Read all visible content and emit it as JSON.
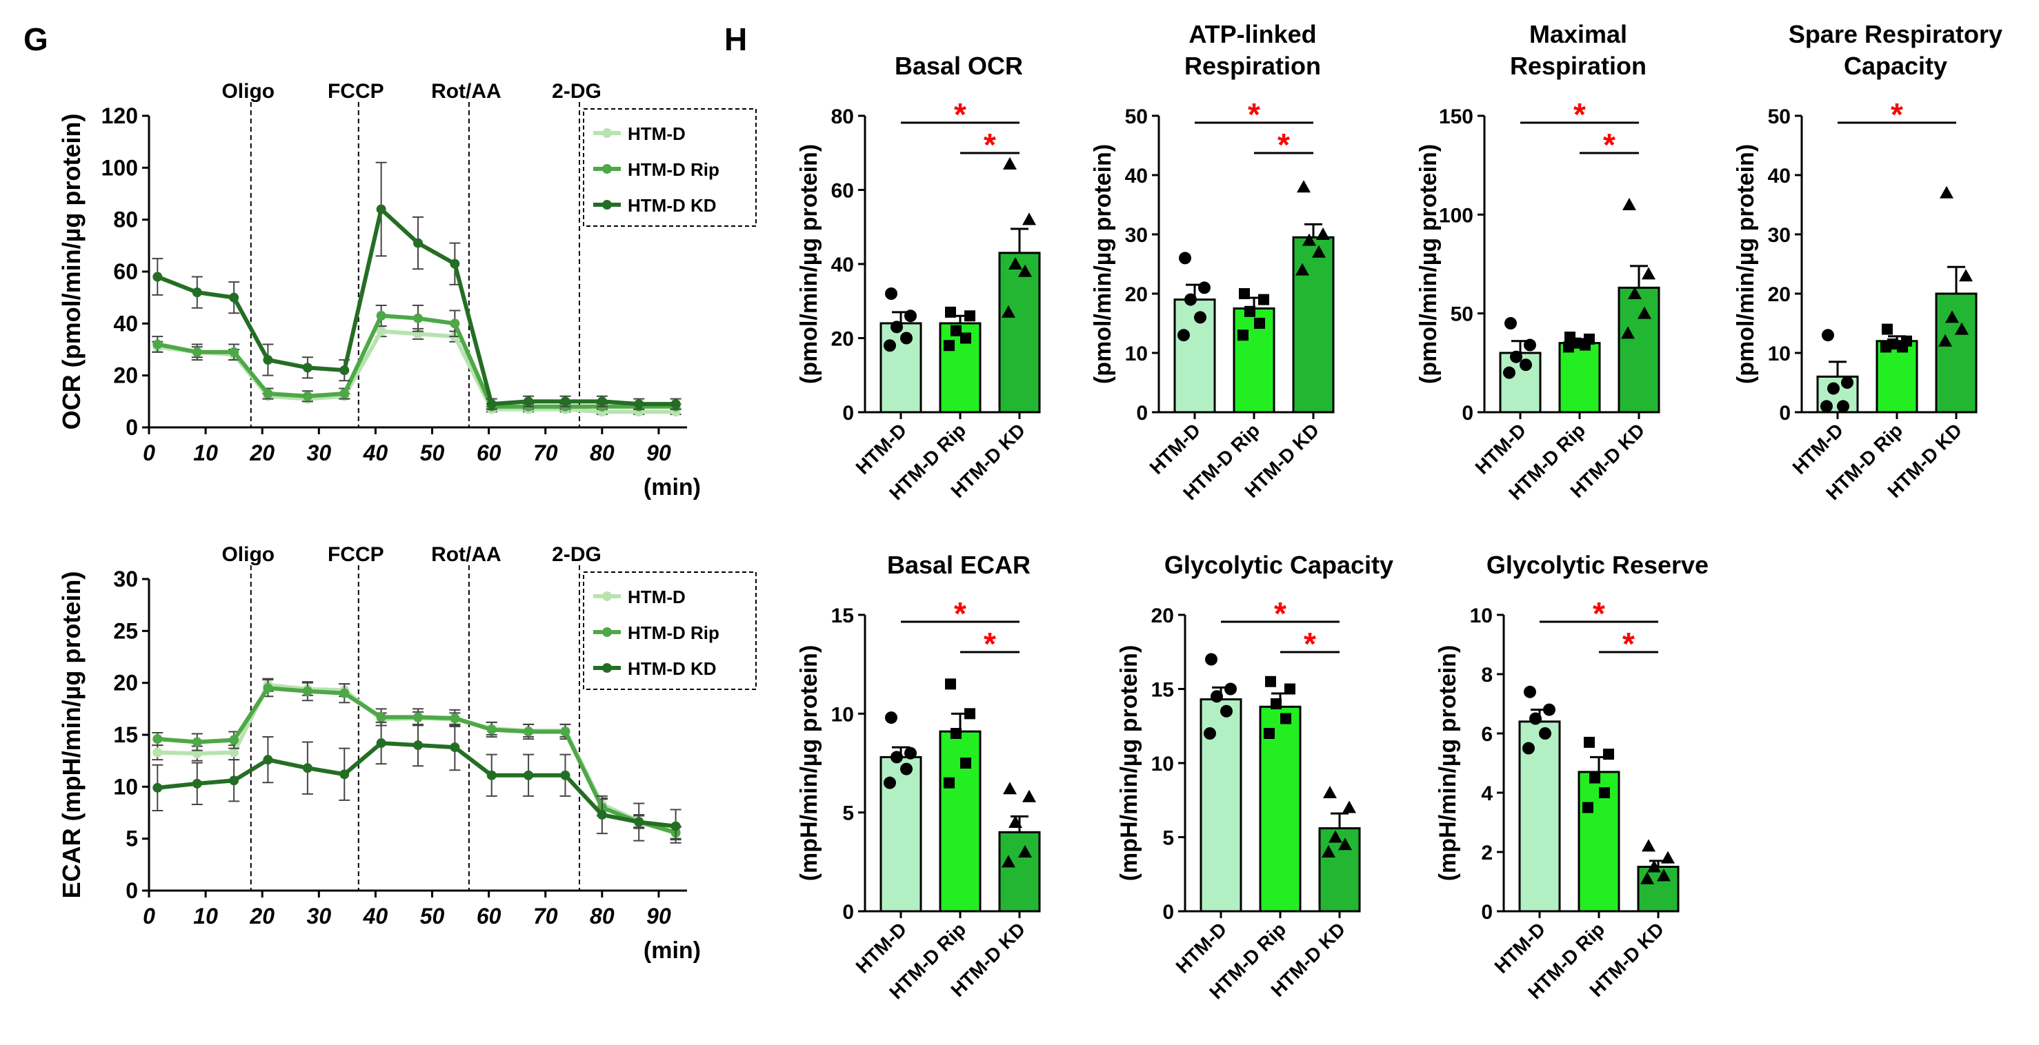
{
  "panels": {
    "g_letter": "G",
    "h_letter": "H"
  },
  "colors": {
    "htm_d": "#b2f0c4",
    "htm_d_rip": "#22ee22",
    "htm_d_kd": "#22b633",
    "line_d": "#b8e3b0",
    "line_rip": "#4ea847",
    "line_kd": "#246e24",
    "sig": "#ff0000"
  },
  "chart_data": [
    {
      "id": "ocr_line",
      "type": "line",
      "title": "",
      "xlabel": "(min)",
      "ylabel": "OCR (pmol/min/µg protein)",
      "xlim": [
        0,
        95
      ],
      "ylim": [
        0,
        120
      ],
      "xticks": [
        0,
        10,
        20,
        30,
        40,
        50,
        60,
        70,
        80,
        90
      ],
      "yticks": [
        0,
        20,
        40,
        60,
        80,
        100,
        120
      ],
      "x": [
        1.5,
        8.5,
        15,
        21,
        28,
        34.5,
        41,
        47.5,
        54,
        60.5,
        67,
        73.5,
        80,
        86.5,
        93
      ],
      "injections": [
        {
          "x": 18,
          "label": "Oligo"
        },
        {
          "x": 37,
          "label": "FCCP"
        },
        {
          "x": 56.5,
          "label": "Rot/AA"
        },
        {
          "x": 76,
          "label": "2-DG"
        }
      ],
      "legend": [
        "HTM-D",
        "HTM-D Rip",
        "HTM-D KD"
      ],
      "series": [
        {
          "name": "HTM-D",
          "values": [
            31,
            29,
            28,
            12,
            11,
            12,
            37,
            36,
            35,
            7,
            7,
            7,
            6,
            6,
            6
          ],
          "err": [
            2,
            2,
            2,
            1,
            1,
            1,
            2,
            2,
            2,
            1,
            1,
            1,
            1,
            1,
            1
          ]
        },
        {
          "name": "HTM-D Rip",
          "values": [
            32,
            29,
            29,
            13,
            12,
            13,
            43,
            42,
            40,
            8,
            8,
            8,
            8,
            8,
            8
          ],
          "err": [
            3,
            3,
            3,
            2,
            2,
            2,
            4,
            5,
            5,
            1,
            1,
            1,
            1,
            1,
            1
          ]
        },
        {
          "name": "HTM-D KD",
          "values": [
            58,
            52,
            50,
            26,
            23,
            22,
            84,
            71,
            63,
            9,
            10,
            10,
            10,
            9,
            9
          ],
          "err": [
            7,
            6,
            6,
            6,
            4,
            4,
            18,
            10,
            8,
            2,
            2,
            2,
            2,
            2,
            2
          ]
        }
      ]
    },
    {
      "id": "ecar_line",
      "type": "line",
      "title": "",
      "xlabel": "(min)",
      "ylabel": "ECAR (mpH/min/µg protein)",
      "xlim": [
        0,
        95
      ],
      "ylim": [
        0,
        30
      ],
      "xticks": [
        0,
        10,
        20,
        30,
        40,
        50,
        60,
        70,
        80,
        90
      ],
      "yticks": [
        0,
        5,
        10,
        15,
        20,
        25,
        30
      ],
      "x": [
        1.5,
        8.5,
        15,
        21,
        28,
        34.5,
        41,
        47.5,
        54,
        60.5,
        67,
        73.5,
        80,
        86.5,
        93
      ],
      "injections": [
        {
          "x": 18,
          "label": "Oligo"
        },
        {
          "x": 37,
          "label": "FCCP"
        },
        {
          "x": 56.5,
          "label": "Rot/AA"
        },
        {
          "x": 76,
          "label": "2-DG"
        }
      ],
      "legend": [
        "HTM-D",
        "HTM-D Rip",
        "HTM-D KD"
      ],
      "series": [
        {
          "name": "HTM-D",
          "values": [
            13.3,
            13.2,
            13.3,
            19.8,
            19.4,
            19.3,
            16.5,
            16.6,
            16.5,
            15.6,
            15.4,
            15.4,
            8.3,
            6.7,
            5.5
          ],
          "err": [
            0.7,
            0.7,
            0.7,
            0.6,
            0.6,
            0.6,
            0.6,
            0.6,
            0.6,
            0.6,
            0.6,
            0.6,
            0.6,
            0.6,
            0.6
          ]
        },
        {
          "name": "HTM-D Rip",
          "values": [
            14.6,
            14.3,
            14.5,
            19.5,
            19.2,
            19.0,
            16.7,
            16.7,
            16.6,
            15.5,
            15.3,
            15.3,
            8.0,
            6.6,
            5.6
          ],
          "err": [
            0.6,
            0.8,
            0.8,
            0.8,
            0.9,
            0.9,
            0.8,
            0.8,
            0.8,
            0.7,
            0.7,
            0.7,
            0.8,
            0.6,
            0.6
          ]
        },
        {
          "name": "HTM-D KD",
          "values": [
            9.9,
            10.3,
            10.6,
            12.6,
            11.8,
            11.2,
            14.2,
            14.0,
            13.8,
            11.1,
            11.1,
            11.1,
            7.3,
            6.6,
            6.2
          ],
          "err": [
            2.2,
            2.0,
            2.0,
            2.2,
            2.5,
            2.5,
            2.0,
            2.0,
            2.2,
            2.0,
            2.0,
            2.0,
            1.8,
            1.8,
            1.6
          ]
        }
      ]
    },
    {
      "id": "basal_ocr",
      "type": "bar",
      "title": [
        "Basal OCR"
      ],
      "ylabel": "(pmol/min/µg protein)",
      "ylim": [
        0,
        80
      ],
      "yticks": [
        0,
        20,
        40,
        60,
        80
      ],
      "categories": [
        "HTM-D",
        "HTM-D Rip",
        "HTM-D KD"
      ],
      "values": [
        24,
        24,
        43
      ],
      "err": [
        3,
        2,
        6.5
      ],
      "points": [
        [
          32,
          26,
          23,
          20,
          18
        ],
        [
          27,
          26,
          22,
          20,
          18
        ],
        [
          67,
          52,
          40,
          38,
          27
        ]
      ],
      "sig": [
        {
          "from": 0,
          "to": 2,
          "label": "*"
        },
        {
          "from": 1,
          "to": 2,
          "label": "*"
        }
      ]
    },
    {
      "id": "atp_linked",
      "type": "bar",
      "title": [
        "ATP-linked",
        "Respiration"
      ],
      "ylabel": "(pmol/min/µg protein)",
      "ylim": [
        0,
        50
      ],
      "yticks": [
        0,
        10,
        20,
        30,
        40,
        50
      ],
      "categories": [
        "HTM-D",
        "HTM-D Rip",
        "HTM-D KD"
      ],
      "values": [
        19,
        17.5,
        29.5
      ],
      "err": [
        2.5,
        1.8,
        2.2
      ],
      "points": [
        [
          26,
          21,
          19,
          16,
          13
        ],
        [
          20,
          19,
          17,
          15,
          13
        ],
        [
          38,
          30,
          29,
          27,
          24
        ]
      ],
      "sig": [
        {
          "from": 0,
          "to": 2,
          "label": "*"
        },
        {
          "from": 1,
          "to": 2,
          "label": "*"
        }
      ]
    },
    {
      "id": "maximal_resp",
      "type": "bar",
      "title": [
        "Maximal",
        "Respiration"
      ],
      "ylabel": "(pmol/min/µg protein)",
      "ylim": [
        0,
        150
      ],
      "yticks": [
        0,
        50,
        100,
        150
      ],
      "categories": [
        "HTM-D",
        "HTM-D Rip",
        "HTM-D KD"
      ],
      "values": [
        30,
        35,
        63
      ],
      "err": [
        6,
        2,
        11
      ],
      "points": [
        [
          45,
          34,
          28,
          24,
          20
        ],
        [
          38,
          37,
          35,
          34,
          33
        ],
        [
          105,
          70,
          60,
          50,
          40
        ]
      ],
      "sig": [
        {
          "from": 0,
          "to": 2,
          "label": "*"
        },
        {
          "from": 1,
          "to": 2,
          "label": "*"
        }
      ]
    },
    {
      "id": "spare_resp",
      "type": "bar",
      "title": [
        "Spare Respiratory",
        "Capacity"
      ],
      "ylabel": "(pmol/min/µg protein)",
      "ylim": [
        0,
        50
      ],
      "yticks": [
        0,
        10,
        20,
        30,
        40,
        50
      ],
      "categories": [
        "HTM-D",
        "HTM-D Rip",
        "HTM-D KD"
      ],
      "values": [
        6,
        12,
        20
      ],
      "err": [
        2.5,
        0.8,
        4.5
      ],
      "points": [
        [
          13,
          5,
          4,
          1,
          1
        ],
        [
          14,
          12,
          11.5,
          11,
          11
        ],
        [
          37,
          23,
          16,
          14,
          12
        ]
      ],
      "sig": [
        {
          "from": 0,
          "to": 2,
          "label": "*"
        }
      ]
    },
    {
      "id": "basal_ecar",
      "type": "bar",
      "title": [
        "Basal ECAR"
      ],
      "ylabel": "(mpH/min/µg protein)",
      "ylim": [
        0,
        15
      ],
      "yticks": [
        0,
        5,
        10,
        15
      ],
      "categories": [
        "HTM-D",
        "HTM-D Rip",
        "HTM-D KD"
      ],
      "values": [
        7.8,
        9.1,
        4.0
      ],
      "err": [
        0.5,
        0.9,
        0.8
      ],
      "points": [
        [
          9.8,
          8,
          7.8,
          7.2,
          6.5
        ],
        [
          11.5,
          10,
          9,
          7.5,
          6.5
        ],
        [
          6.2,
          5.8,
          4.5,
          3,
          2.5
        ]
      ],
      "sig": [
        {
          "from": 0,
          "to": 2,
          "label": "*"
        },
        {
          "from": 1,
          "to": 2,
          "label": "*"
        }
      ]
    },
    {
      "id": "glyco_capacity",
      "type": "bar",
      "title": [
        "Glycolytic Capacity"
      ],
      "ylabel": "(mpH/min/µg protein)",
      "ylim": [
        0,
        20
      ],
      "yticks": [
        0,
        5,
        10,
        15,
        20
      ],
      "categories": [
        "HTM-D",
        "HTM-D Rip",
        "HTM-D KD"
      ],
      "values": [
        14.3,
        13.8,
        5.6
      ],
      "err": [
        0.8,
        0.9,
        1.0
      ],
      "points": [
        [
          17,
          15,
          14.5,
          13.5,
          12
        ],
        [
          15.5,
          15,
          14,
          13,
          12
        ],
        [
          8,
          7,
          5,
          4.5,
          4
        ]
      ],
      "sig": [
        {
          "from": 0,
          "to": 2,
          "label": "*"
        },
        {
          "from": 1,
          "to": 2,
          "label": "*"
        }
      ]
    },
    {
      "id": "glyco_reserve",
      "type": "bar",
      "title": [
        "Glycolytic Reserve"
      ],
      "ylabel": "(mpH/min/µg protein)",
      "ylim": [
        0,
        10
      ],
      "yticks": [
        0,
        2,
        4,
        6,
        8,
        10
      ],
      "categories": [
        "HTM-D",
        "HTM-D Rip",
        "HTM-D KD"
      ],
      "values": [
        6.4,
        4.7,
        1.5
      ],
      "err": [
        0.4,
        0.5,
        0.2
      ],
      "points": [
        [
          7.4,
          6.8,
          6.5,
          6,
          5.5
        ],
        [
          5.7,
          5.3,
          4.5,
          4,
          3.5
        ],
        [
          2.2,
          1.8,
          1.5,
          1.2,
          1.1
        ]
      ],
      "sig": [
        {
          "from": 0,
          "to": 2,
          "label": "*"
        },
        {
          "from": 1,
          "to": 2,
          "label": "*"
        }
      ]
    }
  ]
}
